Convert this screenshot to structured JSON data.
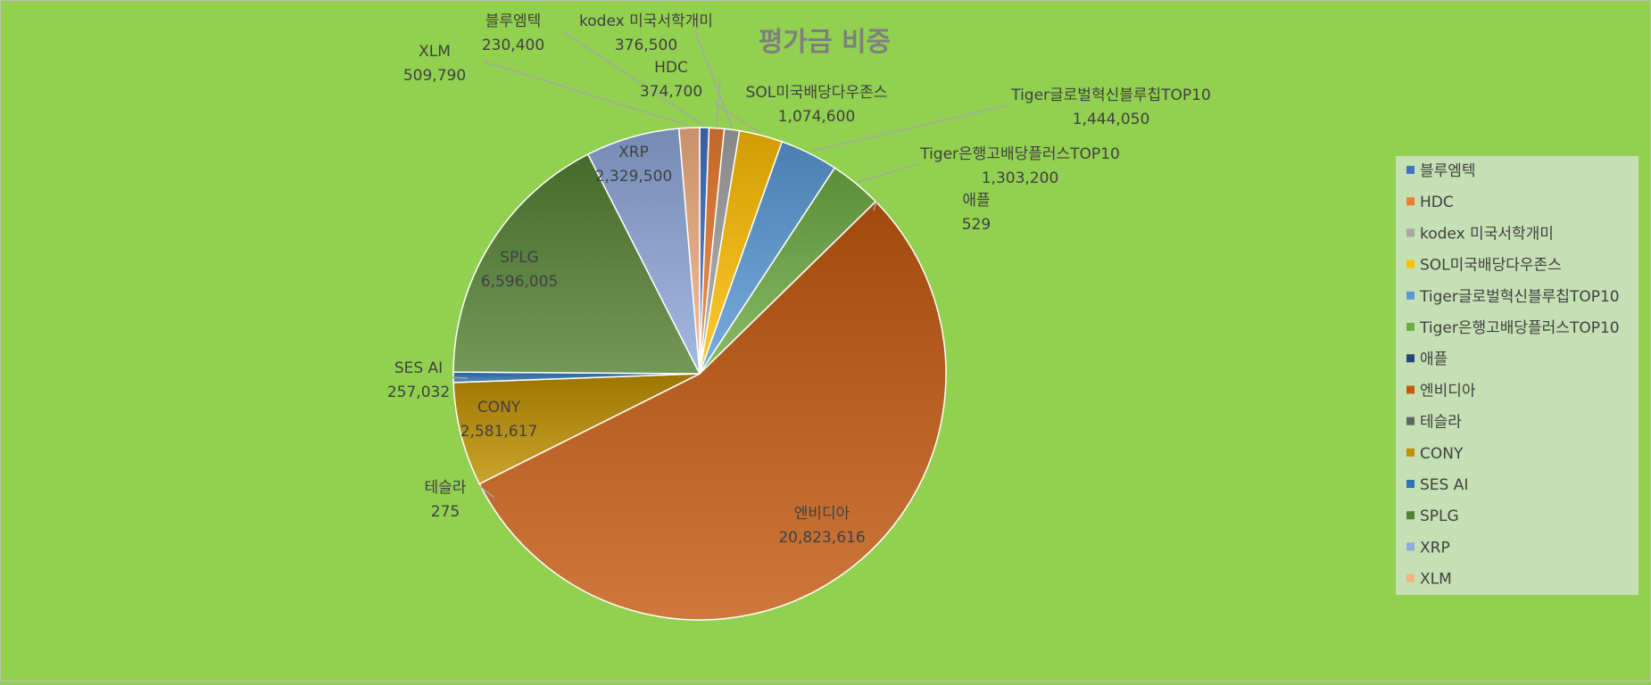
{
  "chart_data": {
    "type": "pie",
    "title": "평가금 비중",
    "legend_position": "right",
    "slices": [
      {
        "name": "블루엠텍",
        "value": 230400,
        "value_label": "230,400",
        "color": "#4472c4"
      },
      {
        "name": "HDC",
        "value": 374700,
        "value_label": "374,700",
        "color": "#ed7d31"
      },
      {
        "name": "kodex 미국서학개미",
        "value": 376500,
        "value_label": "376,500",
        "color": "#a5a5a5"
      },
      {
        "name": "SOL미국배당다우존스",
        "value": 1074600,
        "value_label": "1,074,600",
        "color": "#ffc000"
      },
      {
        "name": "Tiger글로벌혁신블루칩TOP10",
        "value": 1444050,
        "value_label": "1,444,050",
        "color": "#5b9bd5"
      },
      {
        "name": "Tiger은행고배당플러스TOP10",
        "value": 1303200,
        "value_label": "1,303,200",
        "color": "#70ad47"
      },
      {
        "name": "애플",
        "value": 529,
        "value_label": "529",
        "color": "#264478"
      },
      {
        "name": "엔비디아",
        "value": 20823616,
        "value_label": "20,823,616",
        "color": "#c55a11"
      },
      {
        "name": "테슬라",
        "value": 275,
        "value_label": "275",
        "color": "#636363"
      },
      {
        "name": "CONY",
        "value": 2581617,
        "value_label": "2,581,617",
        "color": "#bf9000"
      },
      {
        "name": "SES AI",
        "value": 257032,
        "value_label": "257,032",
        "color": "#2e75b6"
      },
      {
        "name": "SPLG",
        "value": 6596005,
        "value_label": "6,596,005",
        "color": "#548235"
      },
      {
        "name": "XRP",
        "value": 2329500,
        "value_label": "2,329,500",
        "color": "#8faadc"
      },
      {
        "name": "XLM",
        "value": 509790,
        "value_label": "509,790",
        "color": "#f4b183"
      }
    ]
  }
}
